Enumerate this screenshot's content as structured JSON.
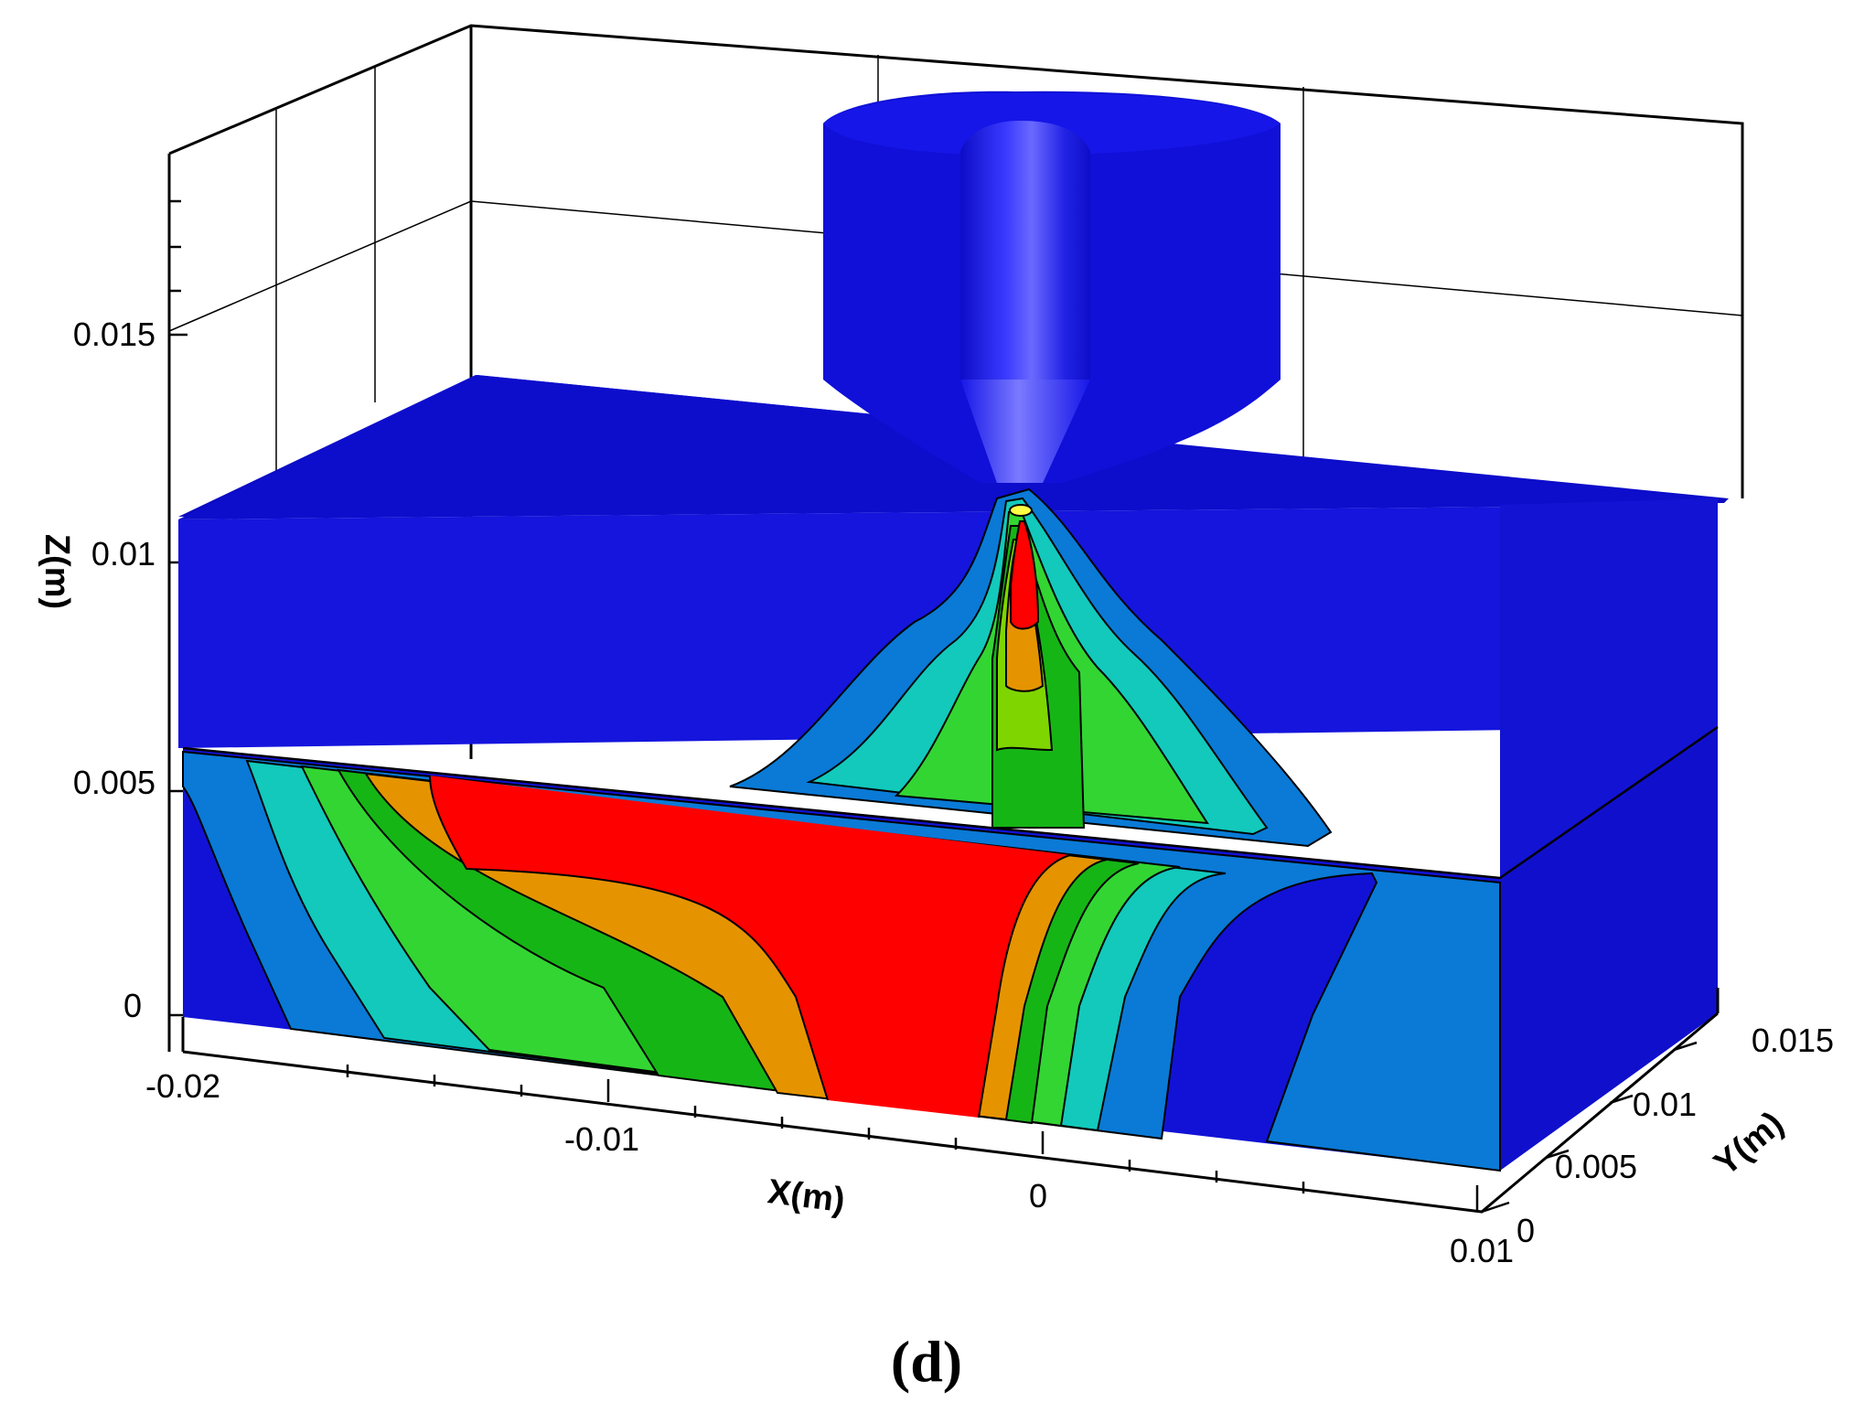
{
  "axes": {
    "z_title": "Z(m)",
    "x_title": "X(m)",
    "y_title": "Y(m)",
    "z_ticks": [
      "0",
      "0.005",
      "0.01",
      "0.015"
    ],
    "x_ticks": [
      "-0.02",
      "-0.01",
      "0",
      "0.01"
    ],
    "y_ticks": [
      "0",
      "0.005",
      "0.01",
      "0.015"
    ]
  },
  "caption": "(d)",
  "colors": {
    "solid_blue": "#1010d8",
    "contour_levels": [
      "#1010d8",
      "#0a7ad6",
      "#12c9bc",
      "#33d533",
      "#16b516",
      "#7fd500",
      "#e59400",
      "#ff0000",
      "#ffff44"
    ]
  }
}
